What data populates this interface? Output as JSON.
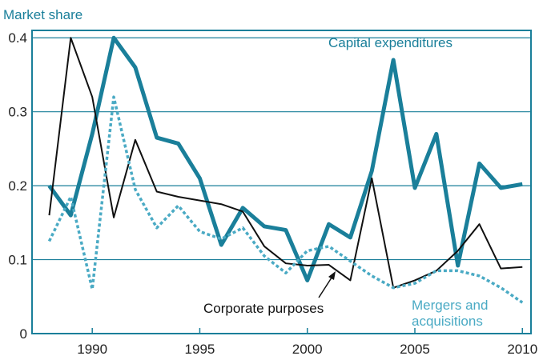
{
  "chart_data": {
    "type": "line",
    "y_label": "Market share",
    "x": [
      1988,
      1989,
      1990,
      1991,
      1992,
      1993,
      1994,
      1995,
      1996,
      1997,
      1998,
      1999,
      2000,
      2001,
      2002,
      2003,
      2004,
      2005,
      2006,
      2007,
      2008,
      2009,
      2010
    ],
    "series": [
      {
        "name": "Capital expenditures",
        "color": "#1a7f9a",
        "style": "solid",
        "width": 5,
        "values": [
          0.2,
          0.16,
          0.27,
          0.4,
          0.36,
          0.265,
          0.257,
          0.21,
          0.12,
          0.17,
          0.145,
          0.14,
          0.072,
          0.148,
          0.13,
          0.22,
          0.37,
          0.197,
          0.27,
          0.092,
          0.23,
          0.197,
          0.202
        ]
      },
      {
        "name": "Corporate purposes",
        "color": "#111111",
        "style": "solid",
        "width": 2,
        "values": [
          0.16,
          0.4,
          0.32,
          0.157,
          0.262,
          0.192,
          0.185,
          0.18,
          0.175,
          0.165,
          0.118,
          0.095,
          0.092,
          0.093,
          0.072,
          0.21,
          0.062,
          0.072,
          0.085,
          0.112,
          0.148,
          0.088,
          0.09
        ]
      },
      {
        "name": "Mergers and acquisitions",
        "color": "#4aaac4",
        "style": "dotted",
        "width": 3.5,
        "values": [
          0.125,
          0.185,
          0.06,
          0.32,
          0.195,
          0.143,
          0.173,
          0.138,
          0.128,
          0.143,
          0.105,
          0.082,
          0.112,
          0.118,
          0.098,
          0.078,
          0.062,
          0.068,
          0.085,
          0.085,
          0.078,
          0.062,
          0.042
        ]
      }
    ],
    "xlim": [
      1987.2,
      2010.4
    ],
    "xticks": [
      1990,
      1995,
      2000,
      2005,
      2010
    ],
    "ylim": [
      0,
      0.41
    ],
    "yticks": [
      0,
      0.1,
      0.2,
      0.3,
      0.4
    ],
    "grid": true
  }
}
